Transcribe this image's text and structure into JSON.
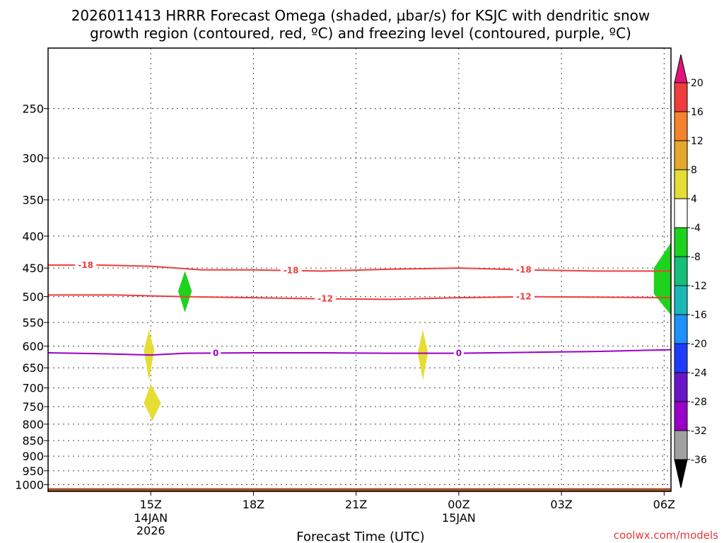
{
  "page": {
    "title_line1": "2026011413 HRRR Forecast Omega (shaded, µbar/s) for KSJC with dendritic snow",
    "title_line2": "growth region (contoured, red, ºC) and freezing level (contoured, purple, ºC)",
    "credit": "coolwx.com/models"
  },
  "chart_data": {
    "type": "contour",
    "xlabel": "Forecast Time (UTC)",
    "x_range_hours": [
      12.0,
      30.2
    ],
    "y_scale": "log-pressure",
    "y_range_hpa": [
      200,
      1025
    ],
    "grid": true,
    "x_ticks": [
      {
        "hour": 15,
        "label": "15Z",
        "date1": "14JAN",
        "date2": "2026"
      },
      {
        "hour": 18,
        "label": "18Z",
        "date1": "",
        "date2": ""
      },
      {
        "hour": 21,
        "label": "21Z",
        "date1": "",
        "date2": ""
      },
      {
        "hour": 24,
        "label": "00Z",
        "date1": "15JAN",
        "date2": ""
      },
      {
        "hour": 27,
        "label": "03Z",
        "date1": "",
        "date2": ""
      },
      {
        "hour": 30,
        "label": "06Z",
        "date1": "",
        "date2": ""
      }
    ],
    "y_ticks": [
      250,
      300,
      350,
      400,
      450,
      500,
      550,
      600,
      650,
      700,
      750,
      800,
      850,
      900,
      950,
      1000
    ],
    "contours": [
      {
        "level": "-18",
        "color": "#f03c3c",
        "points": [
          [
            12.0,
            445
          ],
          [
            13.5,
            445
          ],
          [
            15.0,
            447
          ],
          [
            16.5,
            453
          ],
          [
            18.0,
            453
          ],
          [
            20.0,
            455
          ],
          [
            22.0,
            452
          ],
          [
            24.0,
            450
          ],
          [
            26.0,
            453
          ],
          [
            28.0,
            455
          ],
          [
            30.2,
            455
          ]
        ],
        "labels": [
          {
            "hour": 13.1,
            "text": "-18"
          },
          {
            "hour": 19.1,
            "text": "-18"
          },
          {
            "hour": 25.9,
            "text": "-18"
          }
        ]
      },
      {
        "level": "-12",
        "color": "#f03c3c",
        "points": [
          [
            12.0,
            497
          ],
          [
            14.0,
            497
          ],
          [
            16.0,
            500
          ],
          [
            18.0,
            502
          ],
          [
            20.0,
            504
          ],
          [
            22.0,
            505
          ],
          [
            24.0,
            502
          ],
          [
            26.0,
            500
          ],
          [
            28.0,
            501
          ],
          [
            30.2,
            502
          ]
        ],
        "labels": [
          {
            "hour": 20.1,
            "text": "-12"
          },
          {
            "hour": 25.9,
            "text": "-12"
          }
        ]
      },
      {
        "level": "0",
        "color": "#9a00c8",
        "points": [
          [
            12.0,
            615
          ],
          [
            13.5,
            617
          ],
          [
            15.0,
            620
          ],
          [
            16.0,
            616
          ],
          [
            18.0,
            615
          ],
          [
            20.0,
            615
          ],
          [
            22.0,
            616
          ],
          [
            24.0,
            616
          ],
          [
            26.0,
            614
          ],
          [
            28.0,
            612
          ],
          [
            30.2,
            608
          ]
        ],
        "labels": [
          {
            "hour": 16.9,
            "text": "0"
          },
          {
            "hour": 24.0,
            "text": "0"
          }
        ]
      }
    ],
    "shaded_areas": [
      {
        "value_bin": "-8 to -4",
        "color": "#1ed31e",
        "points": [
          [
            16.0,
            455
          ],
          [
            16.2,
            490
          ],
          [
            16.0,
            530
          ],
          [
            15.8,
            490
          ]
        ]
      },
      {
        "value_bin": "4 to 8",
        "color": "#e5dd33",
        "points": [
          [
            14.95,
            565
          ],
          [
            15.1,
            610
          ],
          [
            14.95,
            680
          ],
          [
            14.8,
            610
          ]
        ]
      },
      {
        "value_bin": "4 to 8",
        "color": "#e5dd33",
        "points": [
          [
            15.0,
            690
          ],
          [
            15.3,
            740
          ],
          [
            15.05,
            790
          ],
          [
            14.8,
            740
          ]
        ]
      },
      {
        "value_bin": "4 to 8",
        "color": "#e5dd33",
        "points": [
          [
            22.95,
            565
          ],
          [
            23.1,
            615
          ],
          [
            22.95,
            680
          ],
          [
            22.8,
            615
          ]
        ]
      },
      {
        "value_bin": "-8 to -4",
        "color": "#1ed31e",
        "points": [
          [
            30.2,
            410
          ],
          [
            30.2,
            535
          ],
          [
            29.7,
            495
          ],
          [
            29.7,
            450
          ]
        ]
      }
    ],
    "terrain": {
      "color": "#a0522d",
      "pressure_hpa": 1013
    },
    "colorbar": {
      "orientation": "vertical",
      "levels": [
        "20",
        "16",
        "12",
        "8",
        "4",
        "-4",
        "-8",
        "-12",
        "-16",
        "-20",
        "-24",
        "-28",
        "-32",
        "-36"
      ],
      "top_cap_color": "#e0147a",
      "bottom_cap_color": "#000000",
      "bins": [
        {
          "color": "#f03c3c"
        },
        {
          "color": "#f5822d"
        },
        {
          "color": "#e3a82c"
        },
        {
          "color": "#e5dd33"
        },
        {
          "color": "#ffffff"
        },
        {
          "color": "#1ed31e"
        },
        {
          "color": "#14c07a"
        },
        {
          "color": "#1ab8b8"
        },
        {
          "color": "#1e90ff"
        },
        {
          "color": "#1e3cff"
        },
        {
          "color": "#6a14c8"
        },
        {
          "color": "#9a00c8"
        },
        {
          "color": "#a0a0a0"
        }
      ]
    }
  }
}
